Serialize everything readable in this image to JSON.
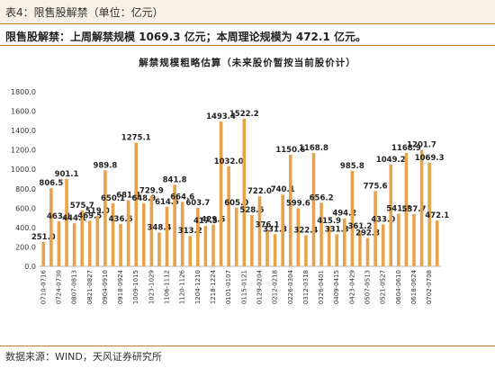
{
  "header": {
    "title": "表4：限售股解禁（单位：亿元）"
  },
  "subtitle": "限售股解禁：上周解禁规模 1069.3 亿元；本周理论规模为 472.1 亿元。",
  "source": "数据来源：WIND，天风证券研究所",
  "colors": {
    "bar": "#e8a24a",
    "accent_line": "#c07a2c",
    "header_bg": "#f7f0e6"
  },
  "chart_data": {
    "type": "bar",
    "title": "解禁规模粗略估算（未来股价暂按当前股价计）",
    "xlabel": "",
    "ylabel": "",
    "ylim": [
      0,
      1800
    ],
    "yticks": [
      "0.0",
      "200.0",
      "400.0",
      "600.0",
      "800.0",
      "1000.0",
      "1200.0",
      "1400.0",
      "1600.0",
      "1800.0"
    ],
    "grid": false,
    "categories": [
      "0710-0716",
      "",
      "0724-0730",
      "",
      "0807-0813",
      "",
      "0821-0827",
      "",
      "0904-0910",
      "",
      "0918-0924",
      "",
      "1009-1015",
      "",
      "1023-1029",
      "",
      "1106-1112",
      "",
      "1120-1126",
      "",
      "1204-1210",
      "",
      "1218-1224",
      "",
      "0101-0107",
      "",
      "0115-0121",
      "",
      "0129-0204",
      "",
      "0212-0218",
      "",
      "0226-0304",
      "",
      "0312-0318",
      "",
      "0326-0401",
      "",
      "0409-0415",
      "",
      "0423-0429",
      "",
      "0507-0513",
      "",
      "0521-0527",
      "",
      "0604-0610",
      "",
      "0618-0624",
      "",
      "0702-0708",
      ""
    ],
    "values": [
      251.0,
      806.5,
      463.1,
      901.1,
      444.1,
      575.7,
      469.5,
      519.0,
      989.8,
      650.1,
      436.6,
      681.4,
      1275.1,
      648.9,
      729.9,
      348.4,
      614.5,
      841.8,
      664.6,
      313.2,
      603.7,
      417.5,
      429.5,
      1493.4,
      1032.0,
      605.0,
      1522.2,
      528.6,
      722.0,
      376.1,
      331.3,
      740.1,
      1150.6,
      599.6,
      322.4,
      1168.8,
      656.2,
      415.9,
      331.3,
      494.2,
      985.8,
      361.2,
      292.8,
      775.6,
      433.0,
      1049.2,
      541.7,
      1168.9,
      537.7,
      1201.7,
      1069.3,
      472.1
    ],
    "labels": [
      "251.0",
      "806.5",
      "463.1",
      "901.1",
      "444.1",
      "575.7",
      "469.5",
      "519.0",
      "989.8",
      "650.1",
      "436.6",
      "681.4",
      "1275.1",
      "648.9",
      "729.9",
      "348.4",
      "614.5",
      "841.8",
      "664.6",
      "313.2",
      "603.7",
      "417.5",
      "429.5",
      "1493.4",
      "1032.0",
      "605.0",
      "1522.2",
      "528.6",
      "722.0",
      "376.1",
      "331.3",
      "740.1",
      "1150.6",
      "599.6",
      "322.4",
      "1168.8",
      "656.2",
      "415.9",
      "331.3",
      "494.2",
      "985.8",
      "361.2",
      "292.8",
      "775.6",
      "433.0",
      "1049.2",
      "541.7",
      "1168.9",
      "537.7",
      "1201.7",
      "1069.3",
      "472.1"
    ]
  }
}
